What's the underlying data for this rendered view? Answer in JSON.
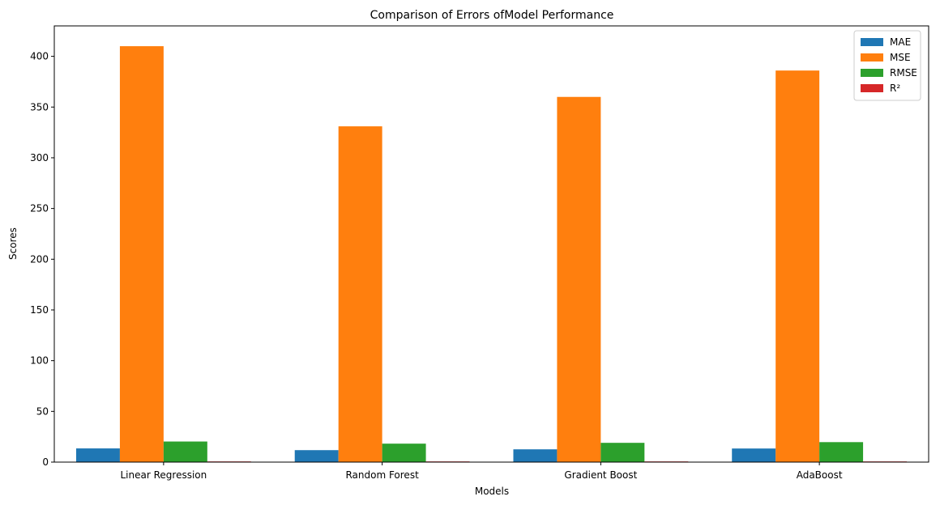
{
  "chart_data": {
    "type": "bar",
    "title": "Comparison of Errors ofModel Performance",
    "xlabel": "Models",
    "ylabel": "Scores",
    "categories": [
      "Linear Regression",
      "Random Forest",
      "Gradient Boost",
      "AdaBoost"
    ],
    "ylim": [
      0,
      430
    ],
    "yticks": [
      0,
      50,
      100,
      150,
      200,
      250,
      300,
      350,
      400
    ],
    "legend_position": "top-right",
    "grid": false,
    "series": [
      {
        "name": "MAE",
        "color": "#1f77b4",
        "values": [
          13.5,
          11.8,
          12.6,
          13.4
        ]
      },
      {
        "name": "MSE",
        "color": "#ff7f0e",
        "values": [
          410,
          331,
          360,
          386
        ]
      },
      {
        "name": "RMSE",
        "color": "#2ca02c",
        "values": [
          20.3,
          18.2,
          19.0,
          19.7
        ]
      },
      {
        "name": "R²",
        "color": "#d62728",
        "values": [
          0.5,
          0.6,
          0.55,
          0.5
        ]
      }
    ]
  }
}
